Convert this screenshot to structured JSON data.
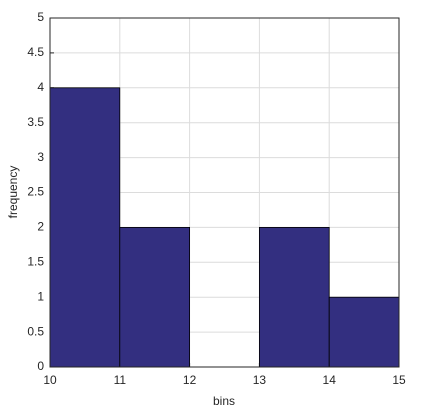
{
  "chart_data": {
    "type": "histogram",
    "xlabel": "bins",
    "ylabel": "frequency",
    "bins": [
      10,
      11,
      12,
      13,
      14,
      15
    ],
    "values": [
      4,
      2,
      0,
      2,
      1
    ],
    "color": "#332f80",
    "xlim": [
      10,
      15
    ],
    "xticks": [
      10,
      11,
      12,
      13,
      14,
      15
    ],
    "ylim": [
      0,
      5
    ],
    "yticks": [
      0,
      0.5,
      1,
      1.5,
      2,
      2.5,
      3,
      3.5,
      4,
      4.5,
      5
    ],
    "grid": true
  }
}
